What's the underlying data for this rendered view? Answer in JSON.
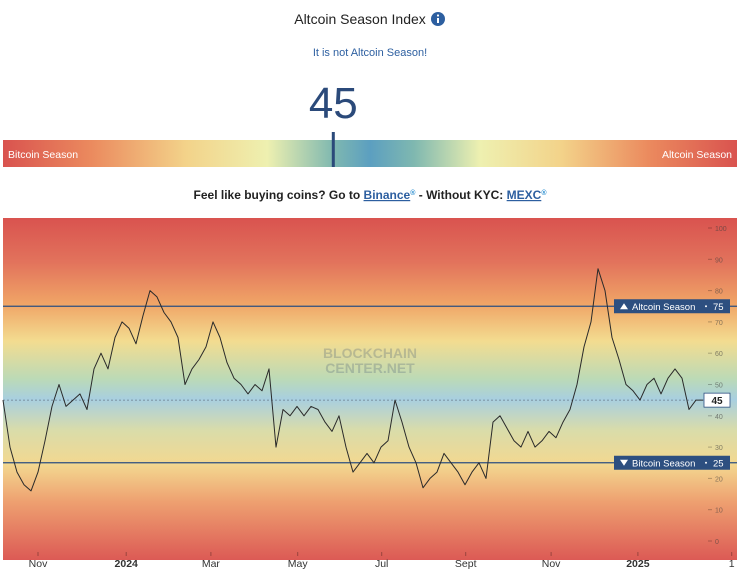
{
  "header": {
    "title": "Altcoin Season Index",
    "subtitle": "It is not Altcoin Season!",
    "index_value": 45,
    "scale_min": 0,
    "scale_max": 100,
    "scale_left": "Bitcoin Season",
    "scale_right": "Altcoin Season"
  },
  "promo": {
    "text_before": "Feel like buying coins? Go to",
    "link1": "Binance",
    "link1_mark": "®",
    "text_middle": "- Without KYC:",
    "link2": "MEXC",
    "link2_mark": "®"
  },
  "chart_data": {
    "type": "line",
    "color": "#2a2a2a",
    "values": [
      45,
      30,
      22,
      18,
      16,
      22,
      32,
      43,
      50,
      43,
      45,
      47,
      42,
      55,
      60,
      55,
      65,
      70,
      68,
      63,
      72,
      80,
      78,
      73,
      70,
      65,
      50,
      55,
      58,
      62,
      70,
      65,
      57,
      52,
      50,
      47,
      50,
      48,
      55,
      30,
      42,
      40,
      43,
      40,
      43,
      42,
      38,
      35,
      40,
      30,
      22,
      25,
      28,
      25,
      30,
      32,
      45,
      38,
      30,
      25,
      17,
      20,
      22,
      28,
      25,
      22,
      18,
      22,
      25,
      20,
      38,
      40,
      36,
      32,
      30,
      35,
      30,
      32,
      35,
      33,
      38,
      42,
      50,
      62,
      70,
      87,
      80,
      65,
      58,
      50,
      48,
      45,
      50,
      52,
      47,
      52,
      55,
      52,
      42,
      45,
      45
    ],
    "xlim": [
      0,
      100
    ],
    "xticks": [
      {
        "value": 5,
        "label": "Nov"
      },
      {
        "value": 17.6,
        "label": "2024"
      },
      {
        "value": 29.7,
        "label": "Mar"
      },
      {
        "value": 42.1,
        "label": "May"
      },
      {
        "value": 54.1,
        "label": "Jul"
      },
      {
        "value": 66.1,
        "label": "Sept"
      },
      {
        "value": 78.3,
        "label": "Nov"
      },
      {
        "value": 90.7,
        "label": "2025"
      },
      {
        "value": 104.1,
        "label": "1"
      }
    ],
    "ylim": [
      0,
      100
    ],
    "yticks": [
      0,
      10,
      20,
      30,
      40,
      50,
      60,
      70,
      80,
      90,
      100
    ],
    "reference_lines": [
      {
        "value": 75,
        "label": "Altcoin Season"
      },
      {
        "value": 25,
        "label": "Bitcoin Season"
      }
    ],
    "current_value": 45,
    "watermark": [
      "BLOCKCHAIN",
      "CENTER.NET"
    ]
  }
}
